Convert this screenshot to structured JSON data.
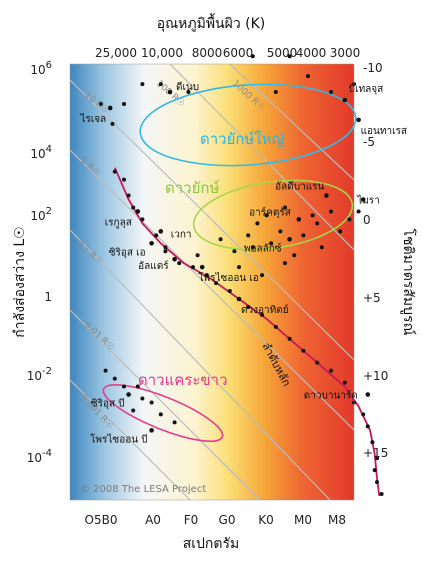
{
  "chart_data": {
    "type": "scatter",
    "title": "",
    "top_axis": {
      "label": "อุณหภูมิพื้นผิว (K)",
      "ticks": [
        "25,000",
        "10,000",
        "8000",
        "6000",
        "5000",
        "4000",
        "3000"
      ]
    },
    "bottom_axis": {
      "label": "สเปกตรัม",
      "ticks": [
        "O5B0",
        "A0",
        "F0",
        "G0",
        "K0",
        "M0",
        "M8"
      ]
    },
    "left_axis": {
      "label": "กำลังส่องสว่าง L☉",
      "ticks": [
        {
          "base": "10",
          "exp": "6"
        },
        {
          "base": "10",
          "exp": "4"
        },
        {
          "base": "10",
          "exp": "2"
        },
        {
          "base": "1",
          "exp": ""
        },
        {
          "base": "10",
          "exp": "-2"
        },
        {
          "base": "10",
          "exp": "-4"
        }
      ]
    },
    "right_axis": {
      "label": "โชติมาตรสัมบูรณ์",
      "ticks": [
        "-10",
        "-5",
        "0",
        "+5",
        "+10",
        "+15"
      ]
    },
    "radius_lines": [
      "10 R☉",
      "1 R☉",
      "0.1 R☉",
      "0.01 R☉",
      "0.001 R☉",
      "100 R☉",
      "1000 R☉"
    ],
    "regions": {
      "supergiants": "ดาวยักษ์ใหญ่",
      "giants": "ดาวยักษ์",
      "white_dwarfs": "ดาวแคระขาว",
      "main_sequence": "ลำดับหลัก"
    },
    "labeled_stars": [
      {
        "name": "ไรเจล",
        "spectral_index": 0.2,
        "log_l": 4.8
      },
      {
        "name": "ดีเนบ",
        "spectral_index": 1.5,
        "log_l": 5.2
      },
      {
        "name": "บีเทลจุส",
        "spectral_index": 5.3,
        "log_l": 5.0
      },
      {
        "name": "แอนทาเรส",
        "spectral_index": 5.6,
        "log_l": 4.5
      },
      {
        "name": "เรกูลุส",
        "spectral_index": 0.8,
        "log_l": 2.2
      },
      {
        "name": "เวกา",
        "spectral_index": 1.3,
        "log_l": 1.7
      },
      {
        "name": "ซิริอุส เอ",
        "spectral_index": 1.1,
        "log_l": 1.4
      },
      {
        "name": "อัลแตร์",
        "spectral_index": 1.6,
        "log_l": 1.0
      },
      {
        "name": "โพรไซออน เอ",
        "spectral_index": 2.2,
        "log_l": 0.8
      },
      {
        "name": "ดวงอาทิตย์",
        "spectral_index": 3.0,
        "log_l": 0.0
      },
      {
        "name": "อาร์คตุรัส",
        "spectral_index": 4.3,
        "log_l": 2.0
      },
      {
        "name": "อัลดีบาแรน",
        "spectral_index": 4.9,
        "log_l": 2.6
      },
      {
        "name": "พอลลักซ์",
        "spectral_index": 4.1,
        "log_l": 1.5
      },
      {
        "name": "ไมรา",
        "spectral_index": 5.7,
        "log_l": 2.5
      },
      {
        "name": "ดาวบานาร์ด",
        "spectral_index": 5.8,
        "log_l": -2.4
      },
      {
        "name": "ซิริอุส บี",
        "spectral_index": 0.6,
        "log_l": -2.4
      },
      {
        "name": "โพรไซออน บี",
        "spectral_index": 1.1,
        "log_l": -3.3
      }
    ],
    "background_stars": [
      [
        0.0,
        4.9
      ],
      [
        0.25,
        4.4
      ],
      [
        0.5,
        4.9
      ],
      [
        0.9,
        5.4
      ],
      [
        1.3,
        5.4
      ],
      [
        1.9,
        5.2
      ],
      [
        3.3,
        6.1
      ],
      [
        4.1,
        6.1
      ],
      [
        4.5,
        5.6
      ],
      [
        5.0,
        5.2
      ],
      [
        5.5,
        5.4
      ],
      [
        3.8,
        5.2
      ],
      [
        0.3,
        3.2
      ],
      [
        0.5,
        3.0
      ],
      [
        0.6,
        2.6
      ],
      [
        0.7,
        2.3
      ],
      [
        0.9,
        2.0
      ],
      [
        1.2,
        1.6
      ],
      [
        1.4,
        1.2
      ],
      [
        1.7,
        0.9
      ],
      [
        2.0,
        0.8
      ],
      [
        2.3,
        0.6
      ],
      [
        2.5,
        0.4
      ],
      [
        2.8,
        0.2
      ],
      [
        3.2,
        -0.2
      ],
      [
        3.5,
        -0.4
      ],
      [
        3.8,
        -0.7
      ],
      [
        4.1,
        -1.0
      ],
      [
        4.4,
        -1.3
      ],
      [
        4.7,
        -1.6
      ],
      [
        5.0,
        -1.8
      ],
      [
        5.3,
        -2.1
      ],
      [
        5.5,
        -2.6
      ],
      [
        5.7,
        -2.9
      ],
      [
        5.8,
        -3.2
      ],
      [
        5.9,
        -3.6
      ],
      [
        6.0,
        -4.0
      ],
      [
        5.95,
        -4.3
      ],
      [
        6.0,
        -4.6
      ],
      [
        6.1,
        -4.9
      ],
      [
        2.6,
        1.5
      ],
      [
        2.9,
        1.2
      ],
      [
        3.2,
        1.6
      ],
      [
        3.4,
        1.9
      ],
      [
        3.6,
        2.1
      ],
      [
        3.7,
        1.4
      ],
      [
        3.9,
        1.7
      ],
      [
        4.0,
        2.3
      ],
      [
        4.2,
        1.1
      ],
      [
        4.4,
        1.6
      ],
      [
        4.6,
        2.1
      ],
      [
        4.7,
        1.9
      ],
      [
        4.8,
        1.3
      ],
      [
        5.0,
        2.2
      ],
      [
        5.2,
        1.7
      ],
      [
        5.4,
        2.0
      ],
      [
        5.6,
        2.2
      ],
      [
        3.0,
        0.8
      ],
      [
        3.5,
        0.6
      ],
      [
        4.0,
        0.9
      ],
      [
        1.4,
        1.3
      ],
      [
        2.1,
        1.1
      ],
      [
        3.3,
        1.3
      ],
      [
        0.1,
        -1.8
      ],
      [
        0.3,
        -2.0
      ],
      [
        0.5,
        -2.2
      ],
      [
        0.8,
        -2.2
      ],
      [
        0.9,
        -2.5
      ],
      [
        1.1,
        -2.6
      ],
      [
        1.3,
        -2.9
      ],
      [
        1.6,
        -3.1
      ],
      [
        0.7,
        -2.8
      ]
    ],
    "credit": "© 2008  The LESA Project"
  }
}
